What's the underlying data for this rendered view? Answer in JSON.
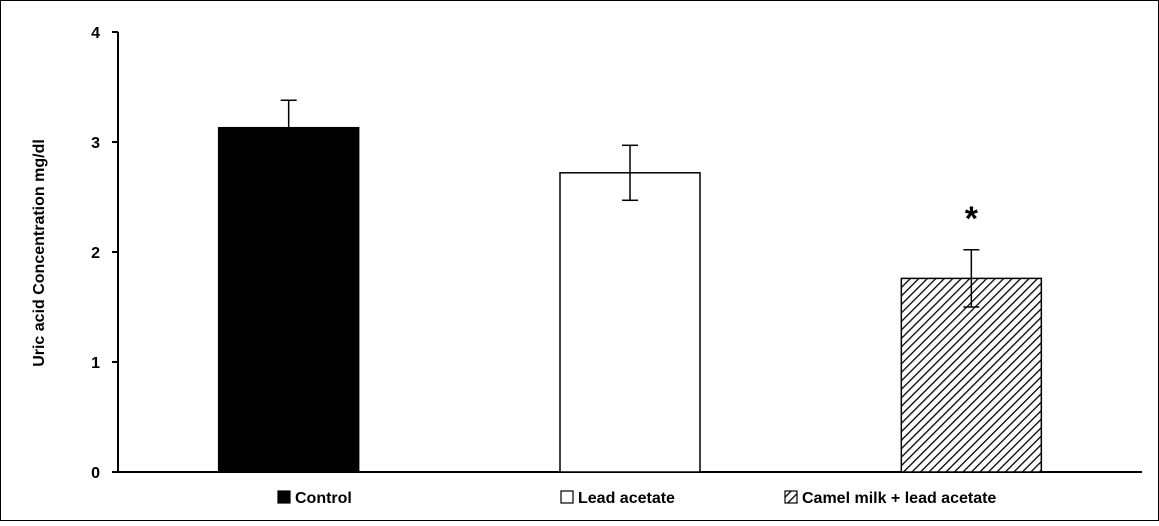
{
  "chart_data": {
    "type": "bar",
    "categories": [
      "Control",
      "Lead acetate",
      "Camel milk + lead acetate"
    ],
    "series": [
      {
        "values": [
          3.13,
          2.72,
          1.76
        ],
        "error": [
          0.25,
          0.25,
          0.26
        ],
        "fills": [
          "solid",
          "hollow",
          "hatched"
        ]
      }
    ],
    "ylabel": "Uric acid Concentration mg/dl",
    "xlabel": "",
    "ylim": [
      0,
      4
    ],
    "yticks": [
      "0",
      "1",
      "2",
      "3",
      "4"
    ],
    "grid": false,
    "legend": {
      "position": "bottom",
      "entries": [
        "Control",
        "Lead acetate",
        "Camel milk + lead acetate"
      ]
    },
    "annotations": [
      {
        "category": "Camel milk + lead acetate",
        "text": "*"
      }
    ]
  },
  "colors": {
    "bar_fill": "#000000",
    "bar_stroke": "#000000",
    "background": "#ffffff"
  }
}
